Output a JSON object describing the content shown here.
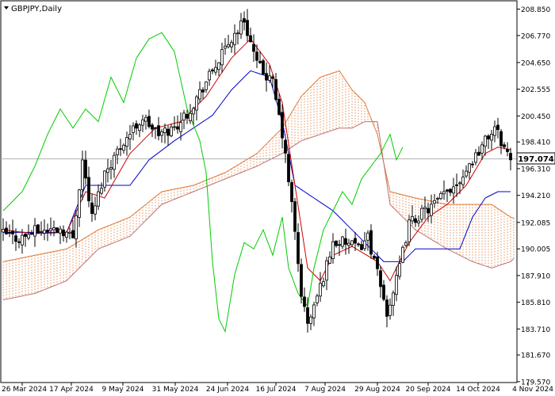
{
  "header": {
    "symbol_label": "GBPJPY,Daily",
    "triangle_icon": "triangle-down-icon"
  },
  "price_tag": "197.074",
  "colors": {
    "background": "#ffffff",
    "candle": "#000000",
    "tenkan": "#cc0000",
    "kijun": "#0000cc",
    "chikou": "#00cc00",
    "cloud_bull": "#e07b39",
    "cloud_bear": "#c07070",
    "price_line": "#b0b0b0",
    "axis": "#000000"
  },
  "chart_data": {
    "type": "candlestick",
    "instrument": "GBPJPY",
    "timeframe": "Daily",
    "indicator": "Ichimoku Kinko Hyo",
    "ylim": [
      179.5,
      209.5
    ],
    "y_ticks": [
      "208.850",
      "206.770",
      "204.650",
      "202.555",
      "200.450",
      "198.410",
      "196.310",
      "194.210",
      "192.085",
      "190.005",
      "187.910",
      "185.810",
      "183.710",
      "181.670",
      "179.570"
    ],
    "x_ticks": [
      "26 Mar 2024",
      "17 Apr 2024",
      "9 May 2024",
      "31 May 2024",
      "24 Jun 2024",
      "16 Jul 2024",
      "7 Aug 2024",
      "29 Aug 2024",
      "20 Sep 2024",
      "14 Oct 2024",
      "4 Nov 2024"
    ],
    "current_price": 197.074,
    "candle_count": 160,
    "price_anchors": [
      [
        0,
        191.2
      ],
      [
        5,
        190.8
      ],
      [
        10,
        191.4
      ],
      [
        18,
        191.6
      ],
      [
        22,
        190.9
      ],
      [
        25,
        197.0
      ],
      [
        28,
        192.5
      ],
      [
        32,
        196.0
      ],
      [
        38,
        198.5
      ],
      [
        44,
        200.3
      ],
      [
        49,
        199.0
      ],
      [
        54,
        199.5
      ],
      [
        59,
        201.0
      ],
      [
        66,
        204.0
      ],
      [
        72,
        206.5
      ],
      [
        76,
        208.0
      ],
      [
        80,
        204.5
      ],
      [
        85,
        203.0
      ],
      [
        88,
        199.0
      ],
      [
        91,
        193.5
      ],
      [
        94,
        186.5
      ],
      [
        96,
        184.0
      ],
      [
        100,
        187.0
      ],
      [
        104,
        190.5
      ],
      [
        108,
        190.5
      ],
      [
        112,
        190.0
      ],
      [
        115,
        191.0
      ],
      [
        118,
        188.0
      ],
      [
        121,
        185.0
      ],
      [
        124,
        187.5
      ],
      [
        128,
        192.0
      ],
      [
        132,
        192.8
      ],
      [
        136,
        193.5
      ],
      [
        140,
        194.5
      ],
      [
        144,
        195.5
      ],
      [
        148,
        197.0
      ],
      [
        152,
        198.5
      ],
      [
        155,
        199.5
      ],
      [
        158,
        198.0
      ],
      [
        160,
        197.07
      ]
    ],
    "tenkan_anchors": [
      [
        0,
        191.5
      ],
      [
        10,
        191.2
      ],
      [
        20,
        191.3
      ],
      [
        26,
        194.5
      ],
      [
        32,
        194.0
      ],
      [
        40,
        197.5
      ],
      [
        48,
        199.5
      ],
      [
        56,
        200.0
      ],
      [
        64,
        202.0
      ],
      [
        72,
        205.0
      ],
      [
        78,
        206.5
      ],
      [
        84,
        204.5
      ],
      [
        88,
        201.5
      ],
      [
        92,
        195.0
      ],
      [
        96,
        188.5
      ],
      [
        100,
        187.5
      ],
      [
        104,
        189.5
      ],
      [
        110,
        190.2
      ],
      [
        118,
        189.0
      ],
      [
        122,
        187.5
      ],
      [
        128,
        190.5
      ],
      [
        134,
        192.5
      ],
      [
        140,
        193.5
      ],
      [
        146,
        195.0
      ],
      [
        152,
        197.5
      ],
      [
        156,
        198.0
      ],
      [
        160,
        197.8
      ]
    ],
    "kijun_anchors": [
      [
        0,
        191.3
      ],
      [
        20,
        191.3
      ],
      [
        26,
        195.0
      ],
      [
        40,
        195.0
      ],
      [
        46,
        197.0
      ],
      [
        54,
        198.5
      ],
      [
        60,
        199.5
      ],
      [
        66,
        200.5
      ],
      [
        72,
        202.5
      ],
      [
        78,
        204.0
      ],
      [
        84,
        203.5
      ],
      [
        88,
        200.0
      ],
      [
        92,
        195.0
      ],
      [
        98,
        194.0
      ],
      [
        104,
        193.0
      ],
      [
        110,
        191.5
      ],
      [
        116,
        190.0
      ],
      [
        120,
        189.0
      ],
      [
        126,
        189.0
      ],
      [
        130,
        190.0
      ],
      [
        136,
        190.0
      ],
      [
        144,
        190.0
      ],
      [
        148,
        192.5
      ],
      [
        152,
        194.0
      ],
      [
        156,
        194.5
      ],
      [
        160,
        194.5
      ]
    ],
    "chikou_anchors": [
      [
        0,
        193.0
      ],
      [
        6,
        194.5
      ],
      [
        10,
        196.5
      ],
      [
        14,
        199.0
      ],
      [
        18,
        201.0
      ],
      [
        22,
        199.5
      ],
      [
        26,
        201.0
      ],
      [
        30,
        200.0
      ],
      [
        34,
        203.5
      ],
      [
        38,
        201.5
      ],
      [
        42,
        205.0
      ],
      [
        46,
        206.5
      ],
      [
        50,
        207.0
      ],
      [
        54,
        205.5
      ],
      [
        58,
        201.0
      ],
      [
        62,
        198.5
      ],
      [
        64,
        196.0
      ],
      [
        66,
        189.0
      ],
      [
        68,
        184.5
      ],
      [
        70,
        183.5
      ],
      [
        73,
        188.0
      ],
      [
        76,
        190.5
      ],
      [
        79,
        190.0
      ],
      [
        82,
        191.5
      ],
      [
        85,
        189.5
      ],
      [
        88,
        192.5
      ],
      [
        90,
        188.5
      ],
      [
        93,
        186.5
      ],
      [
        96,
        185.5
      ],
      [
        98,
        188.5
      ],
      [
        101,
        191.5
      ],
      [
        104,
        193.0
      ],
      [
        107,
        194.5
      ],
      [
        110,
        193.5
      ],
      [
        113,
        195.5
      ],
      [
        116,
        196.5
      ],
      [
        119,
        197.5
      ],
      [
        122,
        199.0
      ],
      [
        124,
        197.0
      ],
      [
        126,
        198.0
      ]
    ],
    "span_a_anchors": [
      [
        0,
        189.0
      ],
      [
        10,
        189.5
      ],
      [
        20,
        190.0
      ],
      [
        30,
        191.5
      ],
      [
        40,
        192.5
      ],
      [
        50,
        194.5
      ],
      [
        60,
        195.0
      ],
      [
        70,
        196.0
      ],
      [
        80,
        197.5
      ],
      [
        88,
        199.5
      ],
      [
        94,
        202.0
      ],
      [
        100,
        203.5
      ],
      [
        106,
        204.0
      ],
      [
        110,
        202.5
      ],
      [
        114,
        201.5
      ],
      [
        118,
        199.0
      ],
      [
        122,
        194.5
      ],
      [
        130,
        194.0
      ],
      [
        140,
        193.5
      ],
      [
        148,
        193.5
      ],
      [
        154,
        193.5
      ],
      [
        160,
        192.5
      ],
      [
        166,
        192.0
      ]
    ],
    "span_b_anchors": [
      [
        0,
        186.0
      ],
      [
        10,
        186.5
      ],
      [
        20,
        187.5
      ],
      [
        30,
        190.0
      ],
      [
        40,
        191.0
      ],
      [
        50,
        193.5
      ],
      [
        60,
        194.5
      ],
      [
        70,
        195.5
      ],
      [
        80,
        196.5
      ],
      [
        88,
        197.5
      ],
      [
        94,
        198.5
      ],
      [
        100,
        199.0
      ],
      [
        106,
        199.5
      ],
      [
        110,
        199.5
      ],
      [
        114,
        200.0
      ],
      [
        118,
        200.0
      ],
      [
        122,
        193.5
      ],
      [
        130,
        191.5
      ],
      [
        140,
        190.0
      ],
      [
        148,
        189.0
      ],
      [
        154,
        188.5
      ],
      [
        160,
        189.0
      ],
      [
        166,
        190.5
      ]
    ]
  }
}
